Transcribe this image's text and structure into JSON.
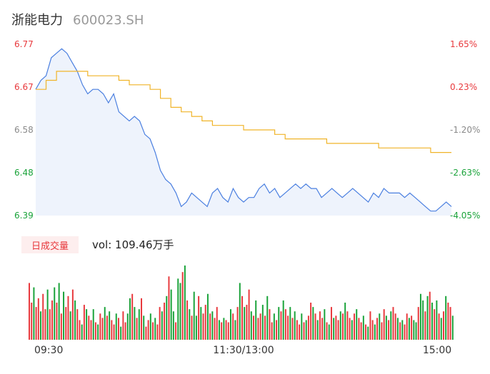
{
  "header": {
    "name": "浙能电力",
    "code": "600023.SH"
  },
  "volume_panel": {
    "badge": "日成交量",
    "vol_text": "vol: 109.46万手"
  },
  "colors": {
    "up": "#e8393d",
    "down": "#1aa33a",
    "neutral": "#8a8a8a",
    "price_line": "#4a7fe0",
    "avg_line": "#f0b429",
    "area": "#eef3fc"
  },
  "chart_data": [
    {
      "type": "line",
      "name": "intraday-price",
      "y_left_ticks": [
        "6.77",
        "6.67",
        "6.58",
        "6.48",
        "6.39"
      ],
      "y_right_ticks": [
        "1.65%",
        "0.23%",
        "-1.20%",
        "-2.63%",
        "-4.05%"
      ],
      "y_tick_colors": [
        "up",
        "up",
        "neutral",
        "down",
        "down"
      ],
      "ylim": [
        6.39,
        6.77
      ],
      "x_labels": [
        "09:30",
        "11:30/13:00",
        "15:00"
      ],
      "xlim": [
        0,
        240
      ],
      "series": [
        {
          "role": "price",
          "x": [
            0,
            3,
            6,
            9,
            12,
            15,
            18,
            21,
            24,
            27,
            30,
            33,
            36,
            39,
            42,
            45,
            48,
            51,
            54,
            57,
            60,
            63,
            66,
            69,
            72,
            75,
            78,
            81,
            84,
            87,
            90,
            93,
            96,
            99,
            102,
            105,
            108,
            111,
            114,
            117,
            120,
            123,
            126,
            129,
            132,
            135,
            138,
            141,
            144,
            147,
            150,
            153,
            156,
            159,
            162,
            165,
            168,
            171,
            174,
            177,
            180,
            183,
            186,
            189,
            192,
            195,
            198,
            201,
            204,
            207,
            210,
            213,
            216,
            219,
            222,
            225,
            228,
            231,
            234,
            237,
            240
          ],
          "values": [
            6.67,
            6.69,
            6.7,
            6.74,
            6.75,
            6.76,
            6.75,
            6.73,
            6.71,
            6.68,
            6.66,
            6.67,
            6.67,
            6.66,
            6.64,
            6.66,
            6.62,
            6.61,
            6.6,
            6.61,
            6.6,
            6.57,
            6.56,
            6.53,
            6.49,
            6.47,
            6.46,
            6.44,
            6.41,
            6.42,
            6.44,
            6.43,
            6.42,
            6.41,
            6.44,
            6.45,
            6.43,
            6.42,
            6.45,
            6.43,
            6.42,
            6.43,
            6.43,
            6.45,
            6.46,
            6.44,
            6.45,
            6.43,
            6.44,
            6.45,
            6.46,
            6.45,
            6.46,
            6.45,
            6.45,
            6.43,
            6.44,
            6.45,
            6.44,
            6.43,
            6.44,
            6.45,
            6.44,
            6.43,
            6.42,
            6.44,
            6.43,
            6.45,
            6.44,
            6.44,
            6.44,
            6.43,
            6.44,
            6.43,
            6.42,
            6.41,
            6.4,
            6.4,
            6.41,
            6.42,
            6.41
          ]
        },
        {
          "role": "average",
          "x": [
            0,
            6,
            12,
            18,
            24,
            30,
            36,
            42,
            48,
            54,
            60,
            66,
            72,
            78,
            84,
            90,
            96,
            102,
            108,
            114,
            120,
            126,
            132,
            138,
            144,
            150,
            156,
            162,
            168,
            174,
            180,
            186,
            192,
            198,
            204,
            210,
            216,
            222,
            228,
            234,
            240
          ],
          "values": [
            6.67,
            6.69,
            6.71,
            6.71,
            6.71,
            6.7,
            6.7,
            6.7,
            6.69,
            6.68,
            6.68,
            6.67,
            6.65,
            6.63,
            6.62,
            6.61,
            6.6,
            6.59,
            6.59,
            6.59,
            6.58,
            6.58,
            6.58,
            6.57,
            6.56,
            6.56,
            6.56,
            6.56,
            6.55,
            6.55,
            6.55,
            6.55,
            6.55,
            6.54,
            6.54,
            6.54,
            6.54,
            6.54,
            6.53,
            6.53,
            6.53
          ]
        }
      ]
    },
    {
      "type": "bar",
      "name": "intraday-volume",
      "values": [
        52,
        34,
        48,
        30,
        38,
        26,
        42,
        28,
        46,
        28,
        36,
        48,
        34,
        52,
        24,
        44,
        30,
        40,
        26,
        46,
        36,
        28,
        18,
        14,
        32,
        28,
        22,
        18,
        28,
        16,
        14,
        24,
        20,
        30,
        22,
        26,
        18,
        14,
        24,
        20,
        12,
        26,
        16,
        24,
        38,
        42,
        30,
        20,
        28,
        38,
        22,
        12,
        18,
        24,
        16,
        20,
        14,
        30,
        26,
        34,
        40,
        58,
        46,
        26,
        16,
        56,
        52,
        62,
        68,
        36,
        28,
        22,
        44,
        22,
        40,
        30,
        24,
        32,
        42,
        24,
        26,
        20,
        30,
        18,
        16,
        20,
        18,
        16,
        28,
        24,
        18,
        30,
        52,
        40,
        30,
        32,
        46,
        26,
        22,
        36,
        20,
        24,
        32,
        22,
        40,
        28,
        16,
        24,
        18,
        30,
        26,
        36,
        28,
        22,
        30,
        20,
        26,
        18,
        14,
        24,
        16,
        18,
        22,
        34,
        30,
        24,
        18,
        26,
        20,
        28,
        16,
        14,
        30,
        20,
        22,
        18,
        26,
        24,
        34,
        26,
        20,
        18,
        24,
        28,
        20,
        16,
        22,
        14,
        12,
        26,
        18,
        14,
        20,
        24,
        16,
        28,
        22,
        18,
        26,
        30,
        24,
        20,
        16,
        18,
        14,
        24,
        20,
        22,
        18,
        16,
        30,
        42,
        36,
        26,
        40,
        44,
        34,
        28,
        36,
        24,
        20,
        26,
        40,
        34,
        30,
        22
      ],
      "directions": [
        "u",
        "u",
        "d",
        "u",
        "u",
        "d",
        "u",
        "u",
        "d",
        "u",
        "u",
        "d",
        "u",
        "d",
        "u",
        "d",
        "u",
        "u",
        "d",
        "u",
        "d",
        "u",
        "u",
        "d",
        "u",
        "d",
        "u",
        "u",
        "d",
        "u",
        "d",
        "u",
        "u",
        "d",
        "u",
        "d",
        "u",
        "u",
        "d",
        "u",
        "d",
        "u",
        "u",
        "d",
        "d",
        "u",
        "d",
        "u",
        "d",
        "u",
        "d",
        "u",
        "u",
        "d",
        "u",
        "d",
        "u",
        "u",
        "d",
        "u",
        "d",
        "u",
        "d",
        "d",
        "u",
        "d",
        "d",
        "u",
        "d",
        "u",
        "d",
        "u",
        "d",
        "d",
        "u",
        "d",
        "u",
        "u",
        "d",
        "u",
        "d",
        "u",
        "u",
        "d",
        "u",
        "d",
        "u",
        "u",
        "d",
        "u",
        "d",
        "u",
        "d",
        "u",
        "d",
        "u",
        "u",
        "d",
        "u",
        "d",
        "u",
        "u",
        "d",
        "u",
        "d",
        "u",
        "u",
        "d",
        "u",
        "d",
        "u",
        "d",
        "u",
        "u",
        "d",
        "u",
        "d",
        "u",
        "u",
        "d",
        "u",
        "d",
        "u",
        "u",
        "d",
        "u",
        "d",
        "u",
        "u",
        "d",
        "u",
        "d",
        "u",
        "d",
        "u",
        "u",
        "d",
        "u",
        "d",
        "u",
        "u",
        "d",
        "u",
        "d",
        "u",
        "u",
        "d",
        "u",
        "d",
        "u",
        "u",
        "d",
        "u",
        "d",
        "u",
        "u",
        "d",
        "u",
        "d",
        "u",
        "u",
        "d",
        "u",
        "d",
        "u",
        "u",
        "d",
        "u",
        "d",
        "d",
        "u",
        "d",
        "d",
        "u",
        "d",
        "u",
        "d",
        "u",
        "d",
        "u",
        "d",
        "u",
        "d",
        "u",
        "u",
        "d"
      ]
    }
  ]
}
